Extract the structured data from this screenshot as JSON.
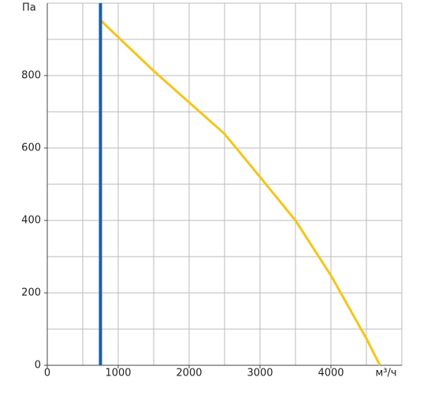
{
  "chart_data": {
    "type": "line",
    "x_label": "м³/ч",
    "y_label": "Па",
    "xlim": [
      0,
      5000
    ],
    "ylim": [
      0,
      1000
    ],
    "xticks": [
      0,
      1000,
      2000,
      3000,
      4000
    ],
    "yticks": [
      0,
      200,
      400,
      600,
      800
    ],
    "x_grid": [
      500,
      1000,
      1500,
      2000,
      2500,
      3000,
      3500,
      4000,
      4500,
      5000
    ],
    "y_grid": [
      100,
      200,
      300,
      400,
      500,
      600,
      700,
      800,
      900,
      1000
    ],
    "marker_x": 750,
    "marker_color": "#1a5fa8",
    "series": [
      {
        "color": "#f5c518",
        "x": [
          767,
          1000,
          1500,
          2000,
          2500,
          3000,
          3500,
          4000,
          4500,
          4690
        ],
        "values": [
          950,
          906,
          813,
          726,
          639,
          520,
          400,
          248,
          74,
          0
        ]
      }
    ]
  }
}
